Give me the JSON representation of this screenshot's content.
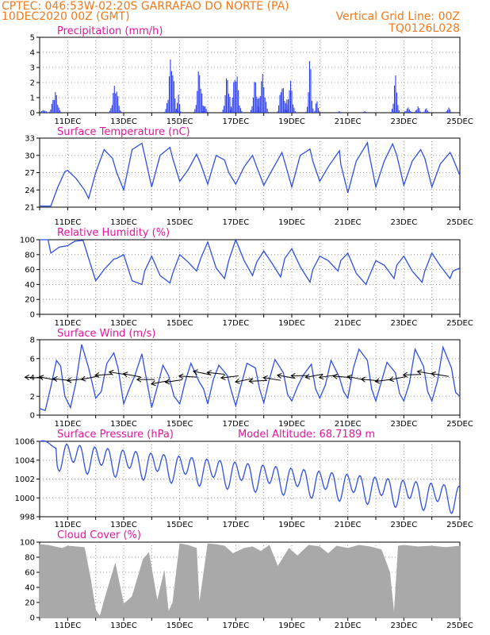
{
  "header": {
    "line1_left": "CPTEC:   046:53W-02:20S   GARRAFAO DO NORTE (PA)",
    "line2_left": "10DEC2020 00Z (GMT)",
    "line2_right": "Vertical Grid Line: 00Z",
    "line3_right": "TQ0126L028"
  },
  "colors": {
    "header": "#f07a1c",
    "title": "#e0189b",
    "line": "#2f4fe0",
    "bar": "#2a3cf0",
    "cloud": "#a9a9a9"
  },
  "chart_data": [
    {
      "id": "precip",
      "type": "bar",
      "title": "Precipitation (mm/h)",
      "ylim": [
        0,
        5
      ],
      "yticks": [
        "0",
        "1",
        "2",
        "3",
        "4",
        "5"
      ],
      "xlim": [
        0,
        15
      ],
      "xtick_labels": [
        "11DEC",
        "13DEC",
        "15DEC",
        "17DEC",
        "19DEC",
        "21DEC",
        "23DEC",
        "25DEC"
      ],
      "grid": true,
      "note_x_units": "days since 10DEC2020 00Z",
      "bursts": [
        [
          0.15,
          0.1,
          0.2
        ],
        [
          0.55,
          0.12,
          1.45
        ],
        [
          2.7,
          0.12,
          2.0
        ],
        [
          4.7,
          0.12,
          3.85
        ],
        [
          4.95,
          0.06,
          1.2
        ],
        [
          5.7,
          0.1,
          3.05
        ],
        [
          5.9,
          0.06,
          0.6
        ],
        [
          6.7,
          0.1,
          2.55
        ],
        [
          7.0,
          0.12,
          2.95
        ],
        [
          7.7,
          0.1,
          2.3
        ],
        [
          7.95,
          0.12,
          2.6
        ],
        [
          8.65,
          0.1,
          2.1
        ],
        [
          8.8,
          0.05,
          1.2
        ],
        [
          8.95,
          0.1,
          2.15
        ],
        [
          9.65,
          0.07,
          3.65
        ],
        [
          9.9,
          0.06,
          0.9
        ],
        [
          10.7,
          0.06,
          0.1
        ],
        [
          11.6,
          0.06,
          0.1
        ],
        [
          12.7,
          0.08,
          2.5
        ],
        [
          13.15,
          0.1,
          0.35
        ],
        [
          13.5,
          0.08,
          0.45
        ],
        [
          13.8,
          0.08,
          0.3
        ],
        [
          14.6,
          0.08,
          0.35
        ]
      ]
    },
    {
      "id": "temp",
      "type": "line",
      "title": "Surface Temperature (nC)",
      "ylim": [
        21,
        33
      ],
      "yticks": [
        "21",
        "24",
        "27",
        "30",
        "33"
      ],
      "xlim": [
        0,
        15
      ],
      "xtick_labels": [
        "11DEC",
        "13DEC",
        "15DEC",
        "17DEC",
        "19DEC",
        "21DEC",
        "23DEC",
        "25DEC"
      ],
      "grid": true,
      "x": [
        0,
        0.4,
        0.65,
        0.9,
        1.0,
        1.3,
        1.6,
        1.75,
        2.0,
        2.3,
        2.6,
        2.75,
        3.0,
        3.3,
        3.65,
        3.75,
        4.0,
        4.3,
        4.65,
        4.75,
        5.0,
        5.3,
        5.6,
        5.75,
        6.0,
        6.3,
        6.6,
        6.75,
        7.0,
        7.3,
        7.6,
        7.75,
        8.0,
        8.3,
        8.65,
        8.75,
        9.0,
        9.3,
        9.65,
        9.75,
        10.0,
        10.3,
        10.7,
        10.75,
        11.0,
        11.3,
        11.7,
        11.75,
        12.0,
        12.3,
        12.6,
        12.75,
        13.0,
        13.3,
        13.6,
        13.75,
        14.0,
        14.3,
        14.65,
        14.75,
        15.0
      ],
      "y": [
        21.2,
        21.2,
        24.5,
        27.2,
        27.4,
        26.0,
        24.0,
        22.5,
        27.0,
        31.0,
        29.5,
        27.0,
        24.0,
        31.0,
        32.1,
        30.0,
        24.5,
        30.0,
        31.4,
        29.5,
        25.5,
        27.5,
        30.2,
        28.5,
        25.0,
        30.0,
        29.2,
        27.0,
        25.0,
        28.0,
        30.0,
        28.0,
        24.8,
        27.5,
        30.5,
        28.8,
        24.5,
        30.0,
        31.1,
        29.0,
        25.5,
        28.0,
        30.8,
        28.5,
        23.5,
        29.0,
        32.2,
        30.5,
        24.5,
        29.0,
        32.0,
        30.0,
        24.8,
        29.0,
        31.0,
        29.5,
        24.5,
        28.5,
        30.5,
        29.5,
        26.5
      ]
    },
    {
      "id": "rh",
      "type": "line",
      "title": "Relative Humidity (%)",
      "ylim": [
        0,
        100
      ],
      "yticks": [
        "0",
        "20",
        "40",
        "60",
        "80",
        "100"
      ],
      "xlim": [
        0,
        15
      ],
      "xtick_labels": [
        "11DEC",
        "13DEC",
        "15DEC",
        "17DEC",
        "19DEC",
        "21DEC",
        "23DEC",
        "25DEC"
      ],
      "grid": true,
      "x": [
        0,
        0.3,
        0.4,
        0.7,
        1.0,
        1.25,
        1.55,
        1.75,
        2.0,
        2.3,
        2.65,
        2.75,
        3.0,
        3.3,
        3.65,
        3.75,
        4.0,
        4.3,
        4.65,
        4.75,
        5.0,
        5.3,
        5.6,
        5.75,
        6.0,
        6.3,
        6.6,
        6.75,
        7.0,
        7.3,
        7.6,
        7.75,
        8.0,
        8.3,
        8.6,
        8.75,
        9.0,
        9.3,
        9.65,
        9.75,
        10.0,
        10.3,
        10.65,
        10.75,
        11.0,
        11.3,
        11.65,
        11.75,
        12.0,
        12.3,
        12.65,
        12.75,
        13.0,
        13.3,
        13.65,
        13.75,
        14.0,
        14.3,
        14.65,
        14.75,
        15.0
      ],
      "y": [
        100,
        100,
        82,
        90,
        92,
        98,
        99,
        75,
        45,
        60,
        74,
        75,
        80,
        45,
        40,
        58,
        78,
        52,
        42,
        55,
        80,
        70,
        58,
        75,
        97,
        62,
        48,
        72,
        100,
        72,
        52,
        70,
        85,
        68,
        50,
        75,
        88,
        64,
        43,
        60,
        78,
        72,
        58,
        72,
        82,
        55,
        40,
        50,
        72,
        66,
        48,
        66,
        78,
        58,
        43,
        58,
        82,
        65,
        48,
        58,
        62
      ]
    },
    {
      "id": "wind",
      "type": "line",
      "title": "Surface Wind (m/s)",
      "ylim": [
        0,
        8
      ],
      "yticks": [
        "0",
        "2",
        "4",
        "6",
        "8"
      ],
      "xlim": [
        0,
        15
      ],
      "xtick_labels": [
        "11DEC",
        "13DEC",
        "15DEC",
        "17DEC",
        "19DEC",
        "21DEC",
        "23DEC",
        "25DEC"
      ],
      "grid": true,
      "x": [
        0,
        0.2,
        0.4,
        0.6,
        0.75,
        0.9,
        1.1,
        1.3,
        1.5,
        1.75,
        2.0,
        2.2,
        2.4,
        2.65,
        2.8,
        3.0,
        3.2,
        3.4,
        3.65,
        3.8,
        4.0,
        4.2,
        4.4,
        4.6,
        4.8,
        5.0,
        5.2,
        5.4,
        5.7,
        5.85,
        6.0,
        6.2,
        6.4,
        6.7,
        6.85,
        7.0,
        7.2,
        7.4,
        7.7,
        7.85,
        8.0,
        8.2,
        8.4,
        8.7,
        8.85,
        9.0,
        9.2,
        9.4,
        9.7,
        9.85,
        10.0,
        10.2,
        10.4,
        10.7,
        10.85,
        11.0,
        11.2,
        11.4,
        11.7,
        11.85,
        12.0,
        12.2,
        12.4,
        12.7,
        12.85,
        13.0,
        13.2,
        13.4,
        13.7,
        13.85,
        14.0,
        14.2,
        14.4,
        14.7,
        14.85,
        15.0
      ],
      "y": [
        0.7,
        0.5,
        3.0,
        5.8,
        5.2,
        2.0,
        0.8,
        3.5,
        7.5,
        5.0,
        1.8,
        2.5,
        5.5,
        6.6,
        5.0,
        1.2,
        2.8,
        4.2,
        6.5,
        4.0,
        0.8,
        3.0,
        5.3,
        4.2,
        2.0,
        1.2,
        3.6,
        5.5,
        3.5,
        2.8,
        1.2,
        3.8,
        5.3,
        4.2,
        2.5,
        1.0,
        3.3,
        5.5,
        5.0,
        2.8,
        1.3,
        3.8,
        5.9,
        4.5,
        2.2,
        1.5,
        3.0,
        4.2,
        5.4,
        2.8,
        1.8,
        3.2,
        5.8,
        4.0,
        2.5,
        1.8,
        5.0,
        7.0,
        5.8,
        2.8,
        1.5,
        3.6,
        5.6,
        4.5,
        2.3,
        1.5,
        3.4,
        7.0,
        5.2,
        2.5,
        1.5,
        3.6,
        7.2,
        5.0,
        2.4,
        2.0
      ]
    },
    {
      "id": "pressure",
      "type": "line",
      "title": "Surface Pressure (hPa)",
      "annotation": "Model Altitude: 68.7189 m",
      "ylim": [
        998,
        1006
      ],
      "yticks": [
        "998",
        "1000",
        "1002",
        "1004",
        "1006"
      ],
      "xlim": [
        0,
        15
      ],
      "xtick_labels": [
        "11DEC",
        "13DEC",
        "15DEC",
        "17DEC",
        "19DEC",
        "21DEC",
        "23DEC",
        "25DEC"
      ],
      "grid": true
    },
    {
      "id": "cloud",
      "type": "area",
      "title": "Cloud Cover (%)",
      "ylim": [
        0,
        100
      ],
      "yticks": [
        "0",
        "20",
        "40",
        "60",
        "80",
        "100"
      ],
      "xlim": [
        0,
        15
      ],
      "xtick_labels": [
        "11DEC",
        "13DEC",
        "15DEC",
        "17DEC",
        "19DEC",
        "21DEC",
        "23DEC",
        "25DEC"
      ],
      "grid": true,
      "x": [
        0,
        0.3,
        0.8,
        1.0,
        1.6,
        1.8,
        2.0,
        2.15,
        2.4,
        2.7,
        3.0,
        3.3,
        3.7,
        3.9,
        4.2,
        4.45,
        4.6,
        4.75,
        5.0,
        5.3,
        5.6,
        5.7,
        6.0,
        6.3,
        6.6,
        6.9,
        7.3,
        7.6,
        7.9,
        8.2,
        8.5,
        8.9,
        9.2,
        9.6,
        10.0,
        10.3,
        10.6,
        11.0,
        11.4,
        11.8,
        12.2,
        12.5,
        12.65,
        12.8,
        13.0,
        13.5,
        14.0,
        14.5,
        15.0
      ],
      "y": [
        97,
        96,
        92,
        95,
        93,
        55,
        10,
        2,
        35,
        72,
        18,
        28,
        78,
        86,
        22,
        62,
        8,
        20,
        98,
        96,
        92,
        18,
        98,
        97,
        95,
        85,
        92,
        94,
        88,
        96,
        68,
        92,
        82,
        96,
        94,
        85,
        95,
        92,
        96,
        94,
        90,
        60,
        5,
        95,
        96,
        94,
        95,
        93,
        95
      ]
    }
  ]
}
